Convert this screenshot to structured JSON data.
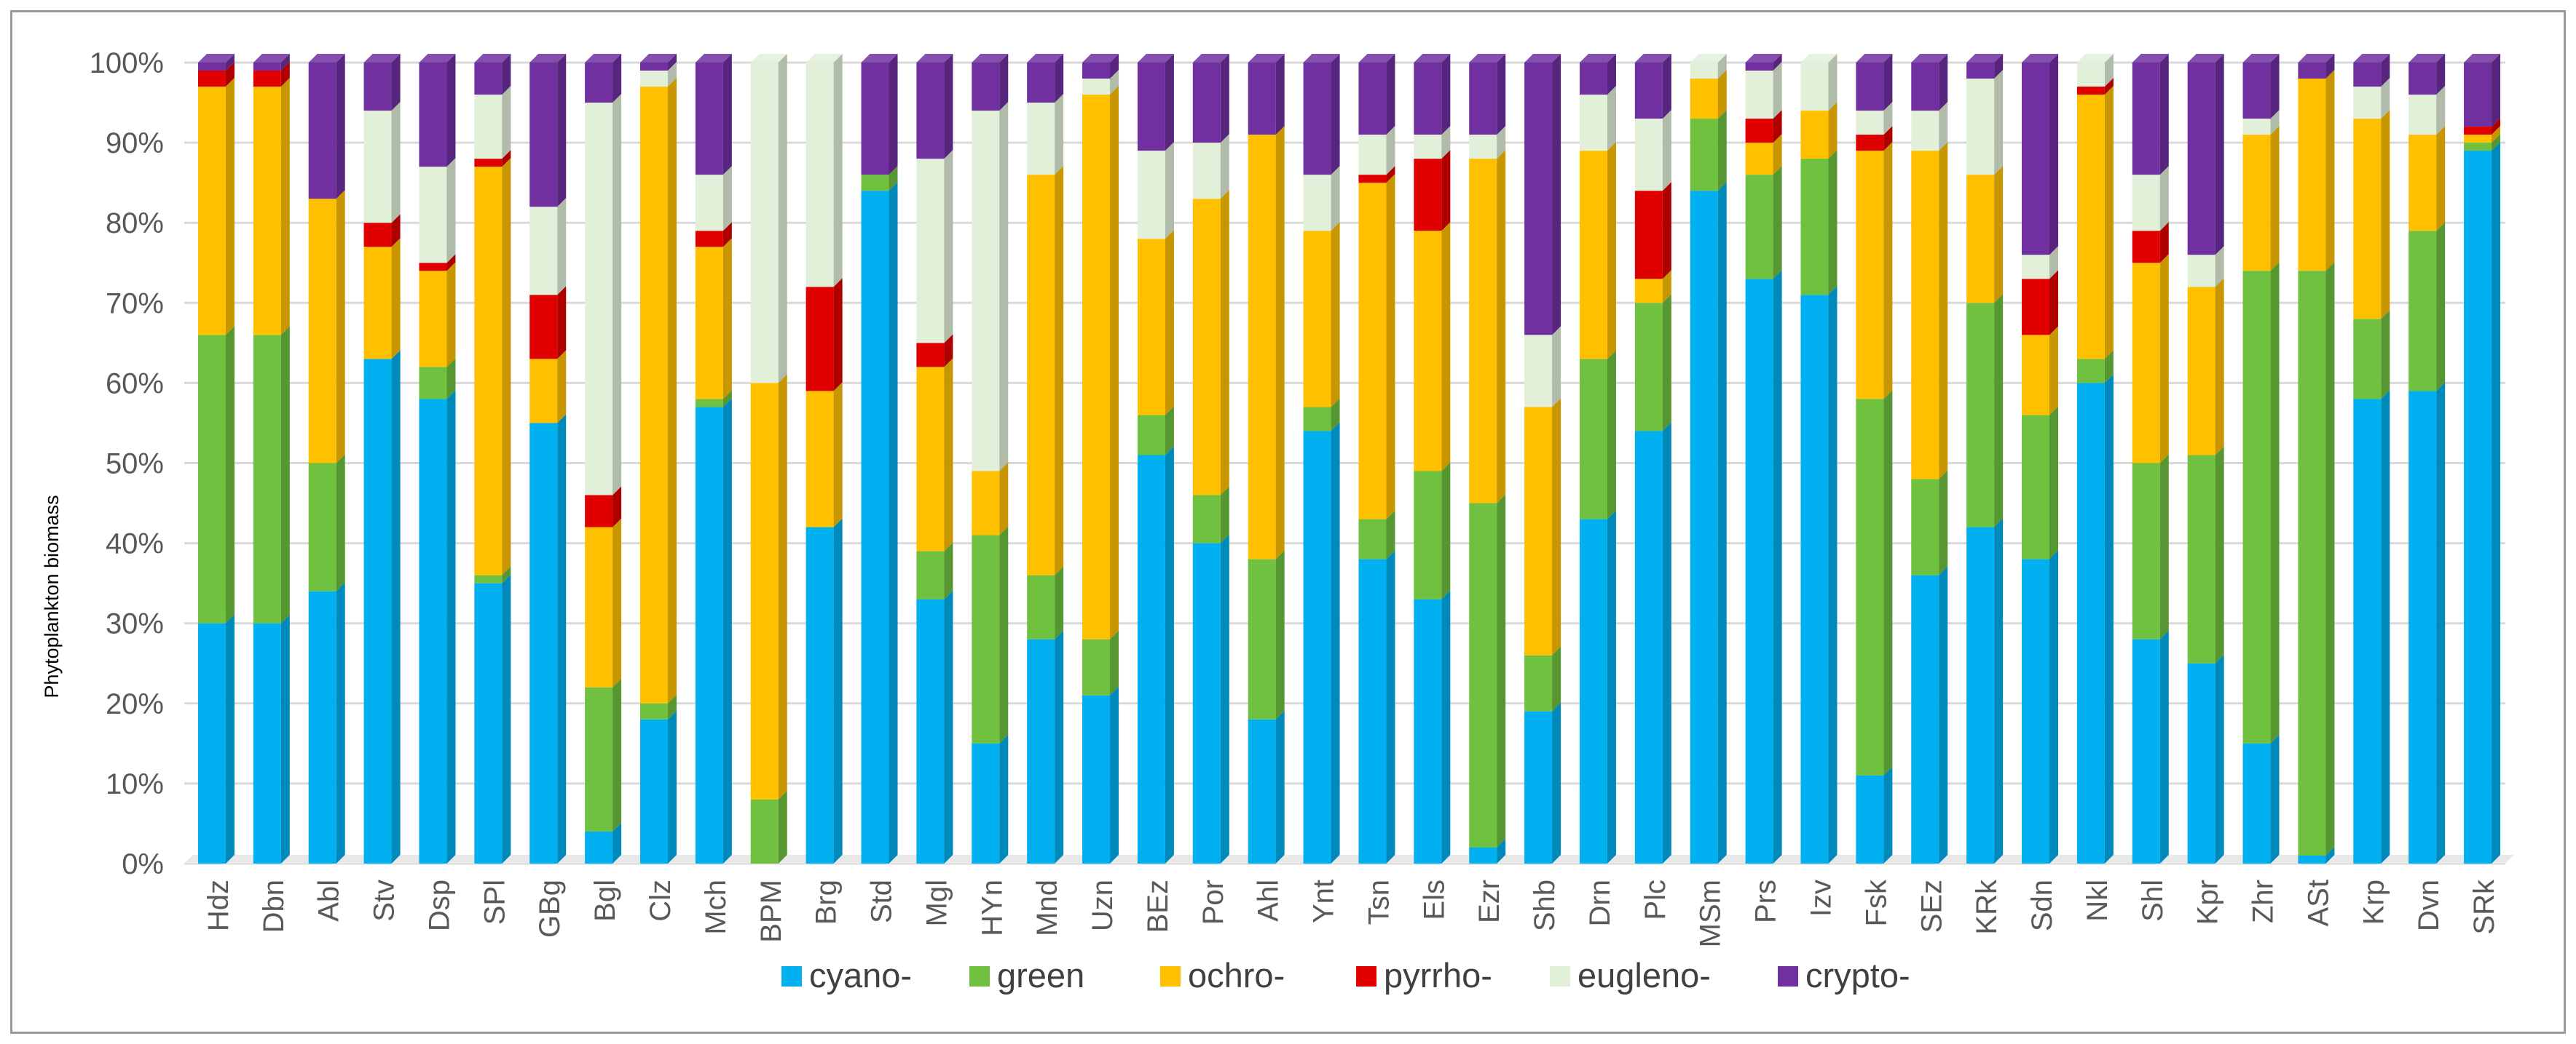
{
  "chart_data": {
    "type": "bar",
    "stacked": true,
    "percent": true,
    "title": "",
    "xlabel": "",
    "ylabel": "Phytoplankton biomass",
    "ylim": [
      0,
      100
    ],
    "yticks": [
      "0%",
      "10%",
      "20%",
      "30%",
      "40%",
      "50%",
      "60%",
      "70%",
      "80%",
      "90%",
      "100%"
    ],
    "grid": true,
    "legend_position": "bottom",
    "categories": [
      "Hdz",
      "Dbn",
      "Abl",
      "Stv",
      "Dsp",
      "SPl",
      "GBg",
      "Bgl",
      "Clz",
      "Mch",
      "BPM",
      "Brg",
      "Std",
      "Mgl",
      "HYn",
      "Mnd",
      "Uzn",
      "BEz",
      "Por",
      "Ahl",
      "Ynt",
      "Tsn",
      "Els",
      "Ezr",
      "Shb",
      "Drn",
      "Plc",
      "MSm",
      "Prs",
      "Izv",
      "Fsk",
      "SEz",
      "KRk",
      "Sdn",
      "Nkl",
      "Shl",
      "Kpr",
      "Zhr",
      "ASt",
      "Krp",
      "Dvn",
      "SRk"
    ],
    "series": [
      {
        "name": "cyano-",
        "color": "#00b0f0",
        "values": [
          30,
          30,
          34,
          63,
          58,
          35,
          55,
          4,
          18,
          57,
          0,
          42,
          84,
          33,
          15,
          28,
          21,
          51,
          40,
          18,
          54,
          38,
          33,
          2,
          19,
          43,
          54,
          84,
          73,
          71,
          11,
          36,
          42,
          38,
          60,
          28,
          25,
          15,
          1,
          58,
          59,
          89
        ]
      },
      {
        "name": "green",
        "color": "#70c13f",
        "values": [
          36,
          36,
          16,
          0,
          4,
          1,
          0,
          18,
          2,
          1,
          8,
          0,
          2,
          6,
          26,
          8,
          7,
          5,
          6,
          20,
          3,
          5,
          16,
          43,
          7,
          20,
          16,
          9,
          13,
          17,
          47,
          12,
          28,
          18,
          3,
          22,
          26,
          59,
          73,
          10,
          20,
          1
        ]
      },
      {
        "name": "ochro-",
        "color": "#ffc000",
        "values": [
          31,
          31,
          33,
          14,
          12,
          51,
          8,
          20,
          77,
          19,
          52,
          17,
          0,
          23,
          8,
          50,
          68,
          22,
          37,
          53,
          22,
          42,
          30,
          43,
          31,
          26,
          3,
          5,
          4,
          6,
          31,
          41,
          16,
          10,
          33,
          25,
          21,
          17,
          24,
          25,
          12,
          1
        ]
      },
      {
        "name": "pyrrho-",
        "color": "#e00000",
        "values": [
          2,
          2,
          0,
          3,
          1,
          1,
          8,
          4,
          0,
          2,
          0,
          13,
          0,
          3,
          0,
          0,
          0,
          0,
          0,
          0,
          0,
          1,
          9,
          0,
          0,
          0,
          11,
          0,
          3,
          0,
          2,
          0,
          0,
          7,
          1,
          4,
          0,
          0,
          0,
          0,
          0,
          1
        ]
      },
      {
        "name": "eugleno-",
        "color": "#e2f0d9",
        "values": [
          0,
          0,
          0,
          14,
          12,
          8,
          11,
          49,
          2,
          7,
          40,
          28,
          0,
          23,
          45,
          9,
          2,
          11,
          7,
          0,
          7,
          5,
          3,
          3,
          9,
          7,
          9,
          2,
          6,
          6,
          3,
          5,
          12,
          3,
          3,
          7,
          4,
          2,
          0,
          4,
          5,
          0
        ]
      },
      {
        "name": "crypto-",
        "color": "#7030a0",
        "values": [
          1,
          1,
          17,
          6,
          13,
          4,
          18,
          5,
          1,
          14,
          0,
          0,
          14,
          12,
          6,
          5,
          2,
          11,
          10,
          9,
          14,
          9,
          9,
          9,
          34,
          4,
          7,
          0,
          1,
          0,
          6,
          6,
          2,
          24,
          0,
          14,
          24,
          7,
          2,
          3,
          4,
          8
        ]
      }
    ]
  }
}
